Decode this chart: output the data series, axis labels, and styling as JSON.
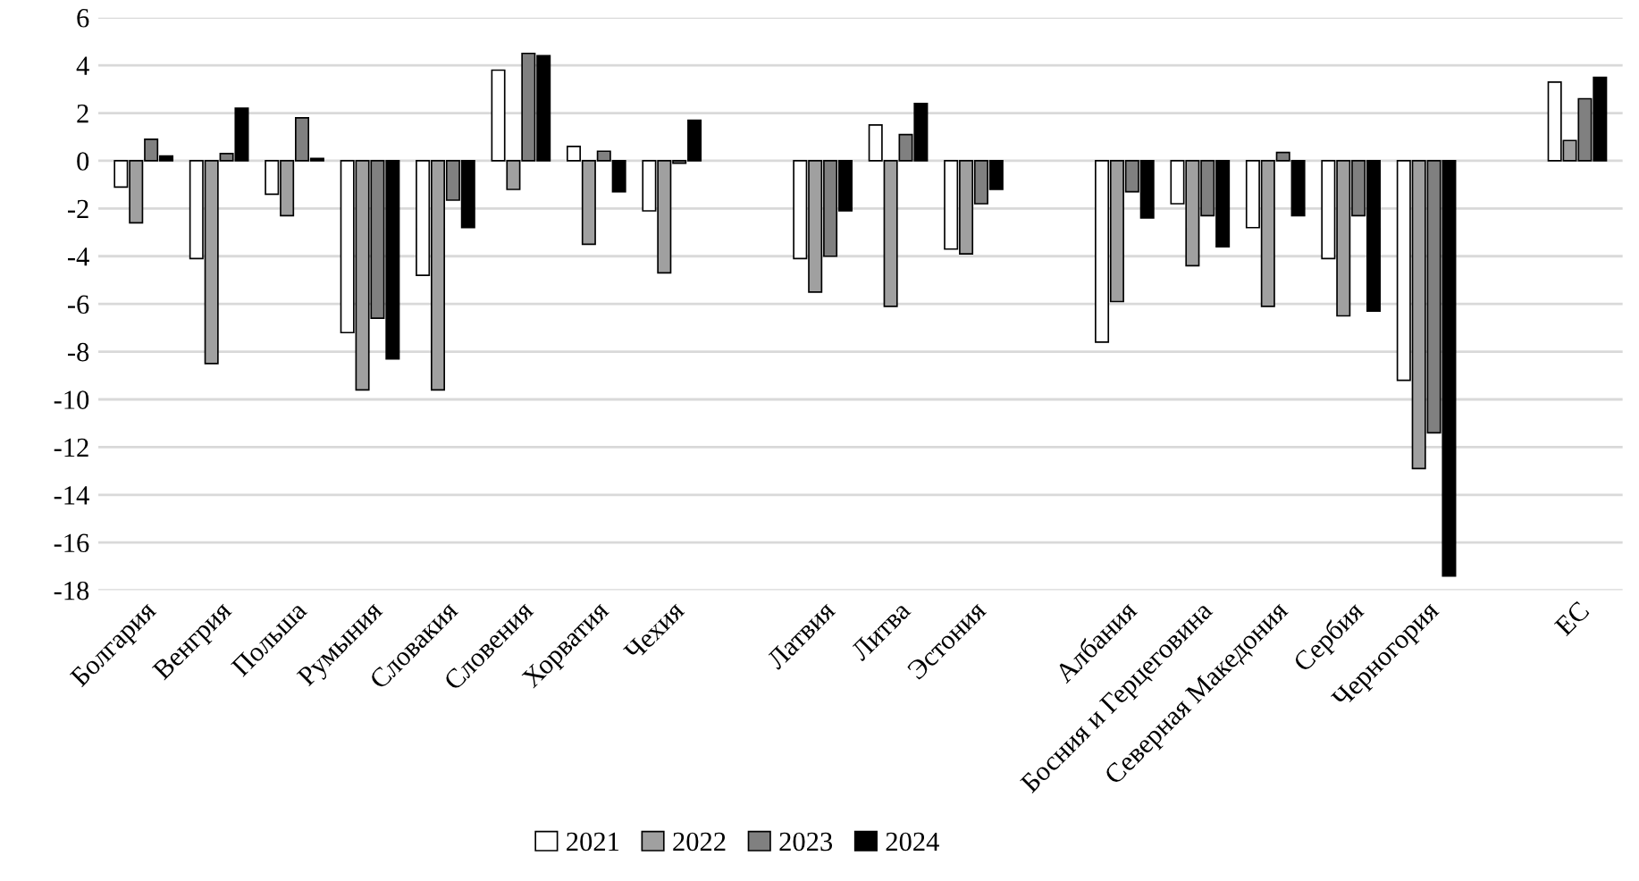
{
  "chart_data": {
    "type": "bar",
    "categories": [
      "Болгария",
      "Венгрия",
      "Польша",
      "Румыния",
      "Словакия",
      "Словения",
      "Хорватия",
      "Чехия",
      null,
      "Латвия",
      "Литва",
      "Эстония",
      null,
      "Албания",
      "Босния и Герцеговина",
      "Северная Македония",
      "Сербия",
      "Черногория",
      null,
      "ЕС"
    ],
    "series": [
      {
        "name": "2021",
        "color": "#ffffff",
        "values": [
          -1.1,
          -4.1,
          -1.4,
          -7.2,
          -4.8,
          3.8,
          0.6,
          -2.1,
          null,
          -4.1,
          1.5,
          -3.7,
          null,
          -7.6,
          -1.8,
          -2.8,
          -4.1,
          -9.2,
          null,
          3.3
        ]
      },
      {
        "name": "2022",
        "color": "#a0a0a0",
        "values": [
          -2.6,
          -8.5,
          -2.3,
          -9.6,
          -9.6,
          -1.2,
          -3.5,
          -4.7,
          null,
          -5.5,
          -6.1,
          -3.9,
          null,
          -5.9,
          -4.4,
          -6.1,
          -6.5,
          -12.9,
          null,
          0.85
        ]
      },
      {
        "name": "2023",
        "color": "#808080",
        "values": [
          0.9,
          0.3,
          1.8,
          -6.6,
          -1.65,
          4.5,
          0.4,
          -0.1,
          null,
          -4.0,
          1.1,
          -1.8,
          null,
          -1.3,
          -2.3,
          0.35,
          -2.3,
          -11.4,
          null,
          2.6
        ]
      },
      {
        "name": "2024",
        "color": "#000000",
        "values": [
          0.2,
          2.2,
          0.1,
          -8.3,
          -2.8,
          4.4,
          -1.3,
          1.7,
          null,
          -2.1,
          2.4,
          -1.2,
          null,
          -2.4,
          -3.6,
          -2.3,
          -6.3,
          -17.4,
          null,
          3.5
        ]
      }
    ],
    "ylim": [
      -18,
      6
    ],
    "yticks": [
      -18,
      -16,
      -14,
      -12,
      -10,
      -8,
      -6,
      -4,
      -2,
      0,
      2,
      4,
      6
    ],
    "grid": "y",
    "legend": "bottom"
  }
}
